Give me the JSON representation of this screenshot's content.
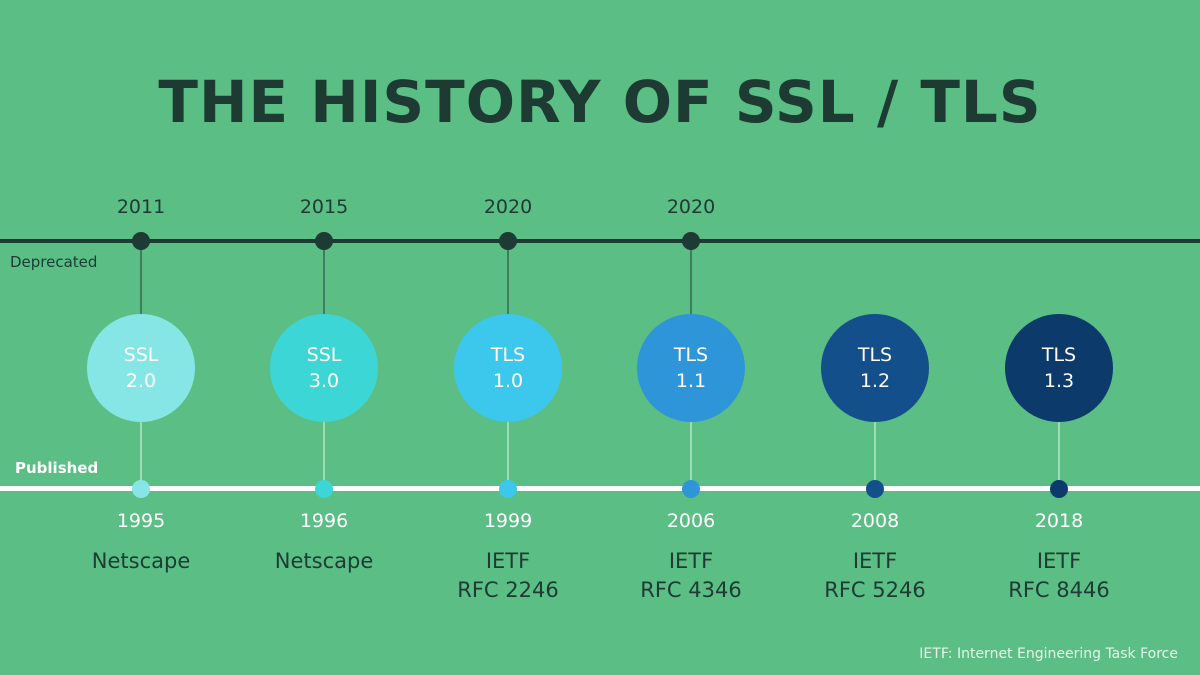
{
  "title": "THE HISTORY OF SSL / TLS",
  "deprecated_label": "Deprecated",
  "published_label": "Published",
  "footnote": "IETF: Internet Engineering Task Force",
  "versions": [
    {
      "protocol": "SSL",
      "version": "2.0",
      "deprecated": "2011",
      "published": "1995",
      "org": "Netscape",
      "rfc": "",
      "color": "#86e6e6"
    },
    {
      "protocol": "SSL",
      "version": "3.0",
      "deprecated": "2015",
      "published": "1996",
      "org": "Netscape",
      "rfc": "",
      "color": "#3dd6d6"
    },
    {
      "protocol": "TLS",
      "version": "1.0",
      "deprecated": "2020",
      "published": "1999",
      "org": "IETF",
      "rfc": "RFC 2246",
      "color": "#3cc8ec"
    },
    {
      "protocol": "TLS",
      "version": "1.1",
      "deprecated": "2020",
      "published": "2006",
      "org": "IETF",
      "rfc": "RFC 4346",
      "color": "#2e95d8"
    },
    {
      "protocol": "TLS",
      "version": "1.2",
      "deprecated": "",
      "published": "2008",
      "org": "IETF",
      "rfc": "RFC 5246",
      "color": "#134f8a"
    },
    {
      "protocol": "TLS",
      "version": "1.3",
      "deprecated": "",
      "published": "2018",
      "org": "IETF",
      "rfc": "RFC 8446",
      "color": "#0b3a6b"
    }
  ]
}
